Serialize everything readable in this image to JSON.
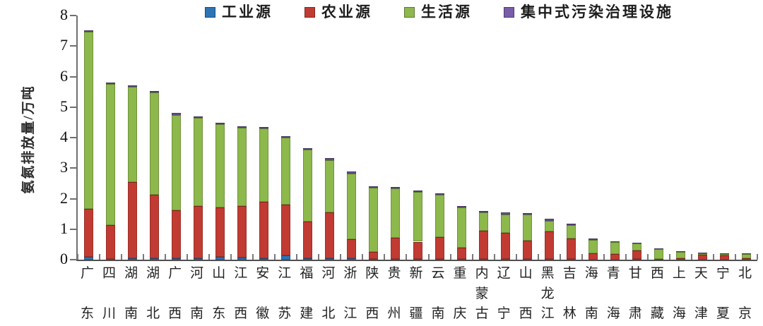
{
  "figure": {
    "background": "#ffffff"
  },
  "legend": {
    "items": [
      {
        "label": "工业源",
        "color": "#2E74B5"
      },
      {
        "label": "农业源",
        "color": "#C13B33"
      },
      {
        "label": "生活源",
        "color": "#8DB84C"
      },
      {
        "label": "集中式污染治理设施",
        "color": "#7A5DA8"
      }
    ]
  },
  "chart_data": {
    "type": "bar",
    "stacked": true,
    "title": "",
    "xlabel": "",
    "ylabel": "氨氮排放量/万吨",
    "ylim": [
      0,
      8
    ],
    "yticks": [
      0,
      1,
      2,
      3,
      4,
      5,
      6,
      7,
      8
    ],
    "grid": false,
    "legend_position": "top",
    "categories": [
      "广东",
      "四川",
      "湖南",
      "湖北",
      "广西",
      "河南",
      "山东",
      "江西",
      "安徽",
      "江苏",
      "福建",
      "河北",
      "浙江",
      "陕西",
      "贵州",
      "新疆",
      "云南",
      "重庆",
      "内蒙古",
      "辽宁",
      "山西",
      "黑龙江",
      "吉林",
      "海南",
      "青海",
      "甘肃",
      "西藏",
      "上海",
      "天津",
      "宁夏",
      "北京"
    ],
    "series": [
      {
        "name": "工业源",
        "color": "#2E74B5",
        "values": [
          0.1,
          0.03,
          0.04,
          0.04,
          0.05,
          0.05,
          0.1,
          0.08,
          0.05,
          0.15,
          0.05,
          0.05,
          0.05,
          0.03,
          0.02,
          0.02,
          0.02,
          0.02,
          0.02,
          0.03,
          0.03,
          0.02,
          0.02,
          0.01,
          0.01,
          0.02,
          0.0,
          0.01,
          0.01,
          0.01,
          0.01
        ]
      },
      {
        "name": "农业源",
        "color": "#C13B33",
        "values": [
          1.57,
          1.11,
          2.5,
          2.09,
          1.57,
          1.7,
          1.62,
          1.67,
          1.85,
          1.66,
          1.19,
          1.49,
          0.62,
          0.23,
          0.69,
          0.57,
          0.71,
          0.38,
          0.92,
          0.85,
          0.6,
          0.9,
          0.68,
          0.21,
          0.17,
          0.29,
          0.02,
          0.04,
          0.16,
          0.14,
          0.03
        ]
      },
      {
        "name": "生活源",
        "color": "#8DB84C",
        "values": [
          5.8,
          4.62,
          3.12,
          3.34,
          3.13,
          2.89,
          2.72,
          2.58,
          2.39,
          2.19,
          2.36,
          1.73,
          2.16,
          2.09,
          1.62,
          1.62,
          1.4,
          1.3,
          0.6,
          0.61,
          0.84,
          0.36,
          0.43,
          0.42,
          0.39,
          0.22,
          0.33,
          0.2,
          0.03,
          0.03,
          0.15
        ]
      },
      {
        "name": "集中式污染治理设施",
        "color": "#6B5494",
        "values": [
          0.05,
          0.05,
          0.05,
          0.05,
          0.05,
          0.05,
          0.05,
          0.05,
          0.05,
          0.05,
          0.05,
          0.05,
          0.05,
          0.05,
          0.05,
          0.05,
          0.05,
          0.05,
          0.05,
          0.05,
          0.05,
          0.05,
          0.05,
          0.05,
          0.04,
          0.03,
          0.03,
          0.03,
          0.02,
          0.02,
          0.02
        ]
      }
    ]
  }
}
